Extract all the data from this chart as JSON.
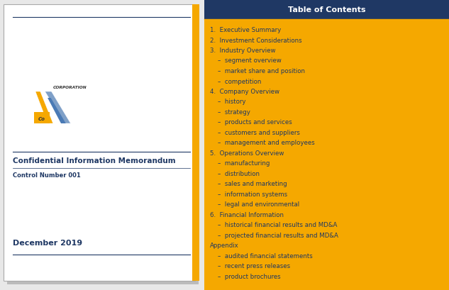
{
  "fig_width": 6.33,
  "fig_height": 4.1,
  "dpi": 100,
  "bg_color": "#e8e8e8",
  "left_panel": {
    "bg": "#ffffff",
    "border_color": "#aaaaaa",
    "line_color": "#1f3864",
    "title": "Confidential Information Memorandum",
    "title_color": "#1f3864",
    "title_fontsize": 7.5,
    "subtitle": "Control Number 001",
    "subtitle_color": "#1f3864",
    "subtitle_fontsize": 6.0,
    "date": "December 2019",
    "date_color": "#1f3864",
    "date_fontsize": 8.0,
    "accent_color": "#f5a800",
    "orange_logo": "#f5a800",
    "blue_logo": "#7fa0c8",
    "corp_text_color": "#333333"
  },
  "right_panel": {
    "bg": "#f5a800",
    "header_bg": "#1f3864",
    "header_text": "Table of Contents",
    "header_text_color": "#ffffff",
    "header_fontsize": 8.0,
    "text_color": "#1f3864",
    "text_fontsize": 6.2,
    "items": [
      {
        "text": "1.  Executive Summary",
        "indent": false
      },
      {
        "text": "2.  Investment Considerations",
        "indent": false
      },
      {
        "text": "3.  Industry Overview",
        "indent": false
      },
      {
        "text": "    –  segment overview",
        "indent": true
      },
      {
        "text": "    –  market share and position",
        "indent": true
      },
      {
        "text": "    –  competition",
        "indent": true
      },
      {
        "text": "4.  Company Overview",
        "indent": false
      },
      {
        "text": "    –  history",
        "indent": true
      },
      {
        "text": "    –  strategy",
        "indent": true
      },
      {
        "text": "    –  products and services",
        "indent": true
      },
      {
        "text": "    –  customers and suppliers",
        "indent": true
      },
      {
        "text": "    –  management and employees",
        "indent": true
      },
      {
        "text": "5.  Operations Overview",
        "indent": false
      },
      {
        "text": "    –  manufacturing",
        "indent": true
      },
      {
        "text": "    –  distribution",
        "indent": true
      },
      {
        "text": "    –  sales and marketing",
        "indent": true
      },
      {
        "text": "    –  information systems",
        "indent": true
      },
      {
        "text": "    –  legal and environmental",
        "indent": true
      },
      {
        "text": "6.  Financial Information",
        "indent": false
      },
      {
        "text": "    –  historical financial results and MD&A",
        "indent": true
      },
      {
        "text": "    –  projected financial results and MD&A",
        "indent": true
      },
      {
        "text": "Appendix",
        "indent": false
      },
      {
        "text": "    –  audited financial statements",
        "indent": true
      },
      {
        "text": "    –  recent press releases",
        "indent": true
      },
      {
        "text": "    –  product brochures",
        "indent": true
      }
    ]
  }
}
